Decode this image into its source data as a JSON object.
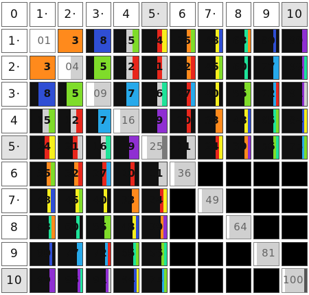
{
  "corner_label": "0",
  "column_labels": [
    "1·",
    "2·",
    "3·",
    "4",
    "5·",
    "6",
    "7·",
    "8",
    "9",
    "10"
  ],
  "row_labels": [
    "1·",
    "2·",
    "3·",
    "4",
    "5·",
    "6",
    "7·",
    "8",
    "9",
    "10"
  ],
  "highlighted": [
    5,
    10
  ],
  "colors": {
    "0": "#111111",
    "1": "#d0d0d0",
    "2": "#e8261c",
    "3": "#ff8a1c",
    "4": "#f7ef1d",
    "5": "#7fdc2a",
    "6": "#1ee399",
    "7": "#27a9ea",
    "8": "#2f4ed4",
    "9": "#8f2fd2"
  },
  "diagonal_colors": {
    "5": "#7a7a7a",
    "10": "#555555"
  },
  "rows": [
    [
      {
        "value": "01",
        "diagonal": true
      },
      {
        "value": "3"
      },
      {
        "value": "8"
      },
      {
        "value": "15"
      },
      {
        "value": "24"
      },
      {
        "value": "35"
      },
      {
        "value": "48"
      },
      {
        "value": "63"
      },
      {
        "value": "80"
      },
      {
        "value": "99"
      }
    ],
    [
      {
        "value": "3"
      },
      {
        "value": "04",
        "diagonal": true
      },
      {
        "value": "5"
      },
      {
        "value": "12"
      },
      {
        "value": "21"
      },
      {
        "value": "32"
      },
      {
        "value": "45"
      },
      {
        "value": "60"
      },
      {
        "value": "77"
      },
      {
        "value": "96"
      }
    ],
    [
      {
        "value": "8"
      },
      {
        "value": "5"
      },
      {
        "value": "09",
        "diagonal": true
      },
      {
        "value": "7"
      },
      {
        "value": "16"
      },
      {
        "value": "27"
      },
      {
        "value": "40"
      },
      {
        "value": "55"
      },
      {
        "value": "72"
      },
      {
        "value": "91"
      }
    ],
    [
      {
        "value": "15"
      },
      {
        "value": "12"
      },
      {
        "value": "7"
      },
      {
        "value": "16",
        "diagonal": true
      },
      {
        "value": "9"
      },
      {
        "value": "20"
      },
      {
        "value": "33"
      },
      {
        "value": "48"
      },
      {
        "value": "65"
      },
      {
        "value": "84"
      }
    ],
    [
      {
        "value": "24"
      },
      {
        "value": "21"
      },
      {
        "value": "16"
      },
      {
        "value": "9"
      },
      {
        "value": "25",
        "diagonal": true
      },
      {
        "value": "11"
      },
      {
        "value": "24"
      },
      {
        "value": "39"
      },
      {
        "value": "56"
      },
      {
        "value": "75"
      }
    ],
    [
      {
        "value": "35"
      },
      {
        "value": "32"
      },
      {
        "value": "27"
      },
      {
        "value": "20"
      },
      {
        "value": "11"
      },
      {
        "value": "36",
        "diagonal": true
      },
      {
        "value": ""
      },
      {
        "value": ""
      },
      {
        "value": ""
      },
      {
        "value": ""
      }
    ],
    [
      {
        "value": "48"
      },
      {
        "value": "45"
      },
      {
        "value": "40"
      },
      {
        "value": "33"
      },
      {
        "value": "24"
      },
      {
        "value": ""
      },
      {
        "value": "49",
        "diagonal": true
      },
      {
        "value": ""
      },
      {
        "value": ""
      },
      {
        "value": ""
      }
    ],
    [
      {
        "value": "63"
      },
      {
        "value": "60"
      },
      {
        "value": "55"
      },
      {
        "value": "48"
      },
      {
        "value": "39"
      },
      {
        "value": ""
      },
      {
        "value": ""
      },
      {
        "value": "64",
        "diagonal": true
      },
      {
        "value": ""
      },
      {
        "value": ""
      }
    ],
    [
      {
        "value": "80"
      },
      {
        "value": "77"
      },
      {
        "value": "72"
      },
      {
        "value": "65"
      },
      {
        "value": "56"
      },
      {
        "value": ""
      },
      {
        "value": ""
      },
      {
        "value": ""
      },
      {
        "value": "81",
        "diagonal": true
      },
      {
        "value": ""
      }
    ],
    [
      {
        "value": "99"
      },
      {
        "value": "96"
      },
      {
        "value": "91"
      },
      {
        "value": "84"
      },
      {
        "value": "75"
      },
      {
        "value": ""
      },
      {
        "value": ""
      },
      {
        "value": ""
      },
      {
        "value": ""
      },
      {
        "value": "100",
        "diagonal": true
      }
    ]
  ]
}
